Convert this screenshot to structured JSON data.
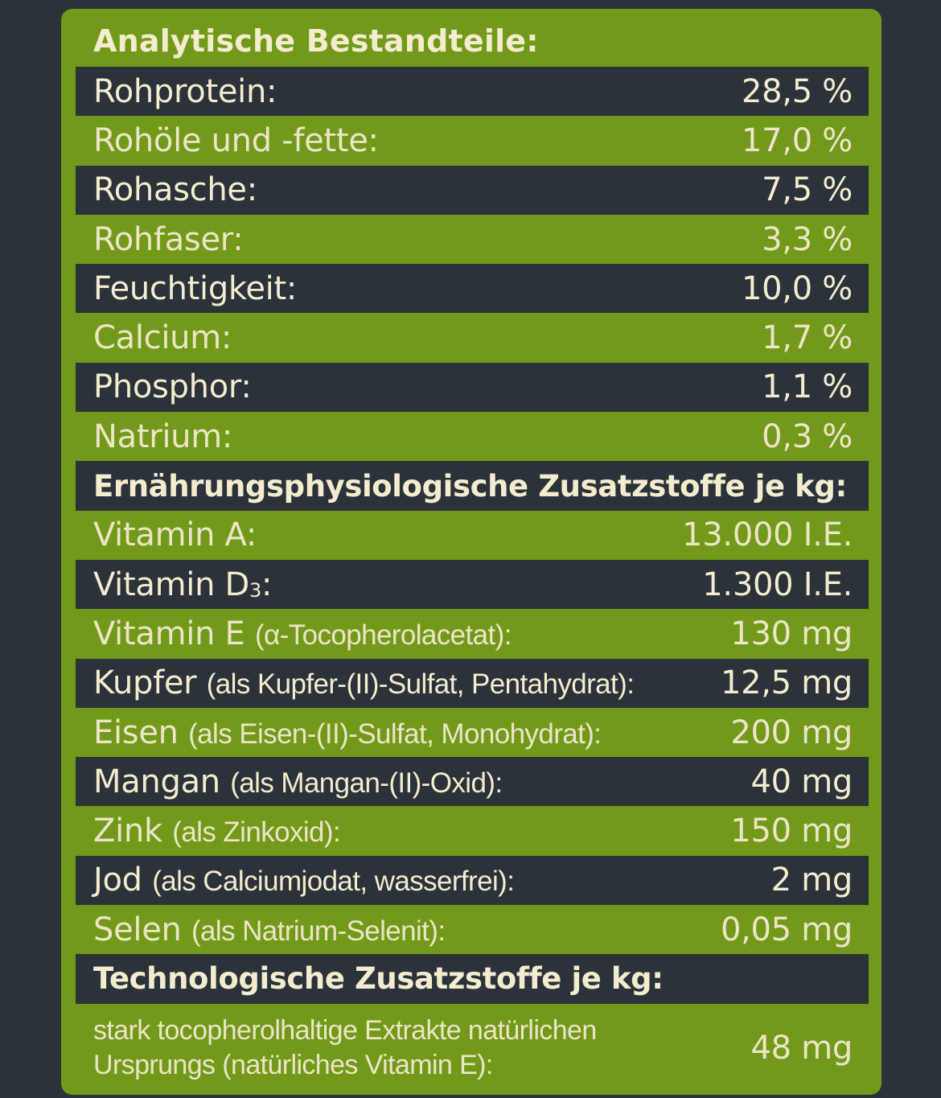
{
  "heading": "Analytische Bestandteile:",
  "analytic_rows": [
    {
      "label": "Rohprotein:",
      "value": "28,5 %"
    },
    {
      "label": "Rohöle und -fette:",
      "value": "17,0 %"
    },
    {
      "label": "Rohasche:",
      "value": "7,5 %"
    },
    {
      "label": "Rohfaser:",
      "value": "3,3 %"
    },
    {
      "label": "Feuchtigkeit:",
      "value": "10,0 %"
    },
    {
      "label": "Calcium:",
      "value": "1,7 %"
    },
    {
      "label": "Phosphor:",
      "value": "1,1 %"
    },
    {
      "label": "Natrium:",
      "value": "0,3 %"
    }
  ],
  "nutrition_heading": "Ernährungsphysiologische Zusatzstoffe je kg:",
  "nutrition_rows": [
    {
      "name": "Vitamin A:",
      "detail": "",
      "value": "13.000 I.E."
    },
    {
      "name": "Vitamin D",
      "subscript": "3",
      "suffix": ":",
      "detail": "",
      "value": "1.300 I.E."
    },
    {
      "name": "Vitamin E",
      "detail": "(α-Tocopherolacetat):",
      "value": "130 mg"
    },
    {
      "name": "Kupfer",
      "detail": "(als Kupfer-(II)-Sulfat, Pentahydrat):",
      "value": "12,5 mg"
    },
    {
      "name": "Eisen",
      "detail": "(als Eisen-(II)-Sulfat, Monohydrat):",
      "value": "200 mg"
    },
    {
      "name": "Mangan",
      "detail": "(als Mangan-(II)-Oxid):",
      "value": "40 mg"
    },
    {
      "name": "Zink",
      "detail": "(als Zinkoxid):",
      "value": "150 mg"
    },
    {
      "name": "Jod",
      "detail": "(als Calciumjodat, wasserfrei):",
      "value": "2 mg"
    },
    {
      "name": "Selen",
      "detail": "(als Natrium-Selenit):",
      "value": "0,05 mg"
    }
  ],
  "tech_heading": "Technologische Zusatzstoffe je kg:",
  "tech_row": {
    "line1": "stark tocopherolhaltige Extrakte natürlichen",
    "line2": "Ursprungs (natürliches Vitamin E):",
    "value": "48 mg"
  },
  "colors": {
    "background": "#2b323a",
    "panel_green": "#73991b",
    "text_cream": "#f3ecce"
  }
}
